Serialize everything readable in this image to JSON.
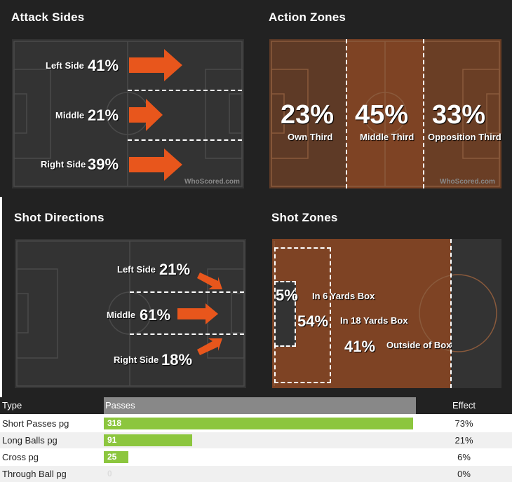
{
  "attack_sides": {
    "title": "Attack Sides",
    "rows": [
      {
        "label": "Left Side",
        "pct": "41%"
      },
      {
        "label": "Middle",
        "pct": "21%"
      },
      {
        "label": "Right Side",
        "pct": "39%"
      }
    ],
    "watermark": "WhoScored.com"
  },
  "action_zones": {
    "title": "Action Zones",
    "zones": [
      {
        "label": "Own Third",
        "pct": "23%"
      },
      {
        "label": "Middle Third",
        "pct": "45%"
      },
      {
        "label": "Opposition Third",
        "pct": "33%"
      }
    ],
    "watermark": "WhoScored.com"
  },
  "shot_directions": {
    "title": "Shot Directions",
    "rows": [
      {
        "label": "Left Side",
        "pct": "21%"
      },
      {
        "label": "Middle",
        "pct": "61%"
      },
      {
        "label": "Right Side",
        "pct": "18%"
      }
    ]
  },
  "shot_zones": {
    "title": "Shot Zones",
    "zones": [
      {
        "label": "In 6 Yards Box",
        "pct": "5%"
      },
      {
        "label": "In 18 Yards Box",
        "pct": "54%"
      },
      {
        "label": "Outside of Box",
        "pct": "41%"
      }
    ]
  },
  "pass_table": {
    "headers": {
      "type": "Type",
      "passes": "Passes",
      "effect": "Effect"
    },
    "rows": [
      {
        "type": "Short Passes pg",
        "value": "318",
        "fraction": 1.0,
        "effect": "73%"
      },
      {
        "type": "Long Balls pg",
        "value": "91",
        "fraction": 0.286,
        "effect": "21%"
      },
      {
        "type": "Cross pg",
        "value": "25",
        "fraction": 0.079,
        "effect": "6%"
      },
      {
        "type": "Through Ball pg",
        "value": "0",
        "fraction": 0.0,
        "effect": "0%"
      }
    ]
  },
  "colors": {
    "accent": "#e8561c",
    "zone": "#7a4426",
    "bar": "#8cc63e",
    "panel": "#333333"
  }
}
